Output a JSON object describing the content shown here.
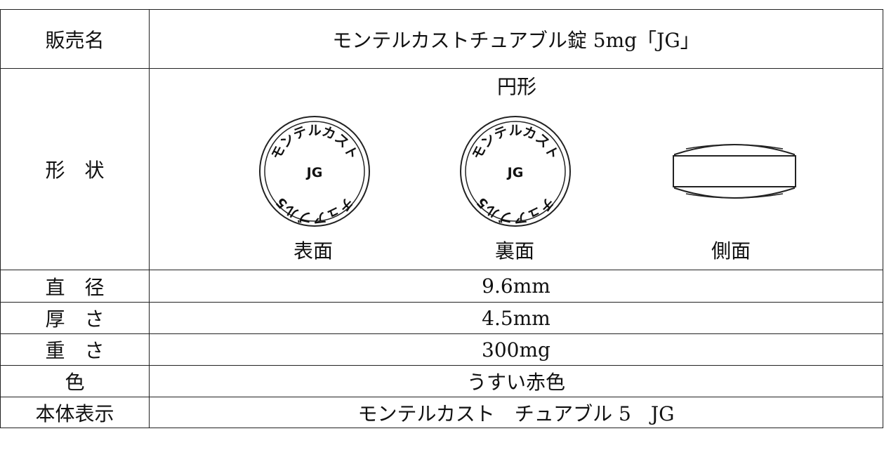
{
  "table": {
    "rows": [
      {
        "label": "販売名",
        "value": "モンテルカストチュアブル錠 5mg「JG」"
      },
      {
        "label": "形　状",
        "shape": "円形",
        "views": [
          "表面",
          "裏面",
          "側面"
        ]
      },
      {
        "label": "直　径",
        "value": "9.6mm"
      },
      {
        "label": "厚　さ",
        "value": "4.5mm"
      },
      {
        "label": "重　さ",
        "value": "300mg"
      },
      {
        "label": "色",
        "value": "うすい赤色"
      },
      {
        "label": "本体表示",
        "value": "モンテルカスト　チュアブル 5　JG"
      }
    ]
  },
  "imprint": {
    "top": "モンテルカスト",
    "center": "JG",
    "bottom": "チュアブル5"
  }
}
